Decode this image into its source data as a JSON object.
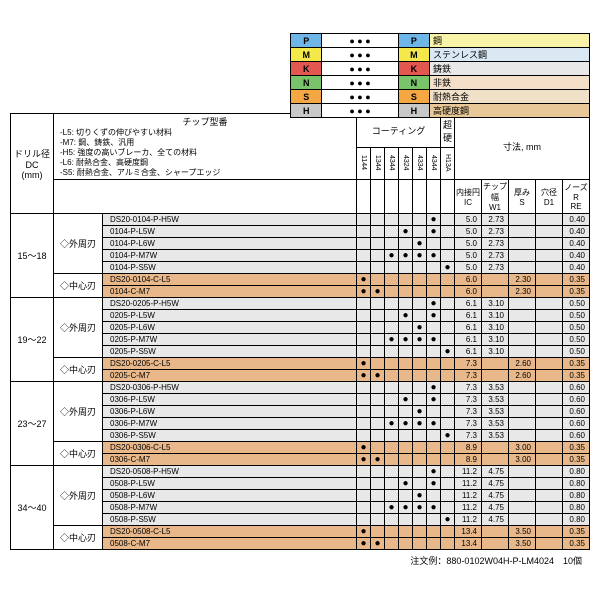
{
  "legend": {
    "rows": [
      {
        "c": "P",
        "bg": "#6fb6e8",
        "mbg": "#f8f3a8",
        "m": "鋼"
      },
      {
        "c": "M",
        "bg": "#f5e84a",
        "mbg": "#d9e8f3",
        "m": "ステンレス鋼"
      },
      {
        "c": "K",
        "bg": "#e25750",
        "mbg": "#e8e8e8",
        "m": "鋳鉄"
      },
      {
        "c": "N",
        "bg": "#79c36a",
        "mbg": "#f4dfc8",
        "m": "非鉄"
      },
      {
        "c": "S",
        "bg": "#f4a742",
        "mbg": "#f0e0c8",
        "m": "耐熱合金"
      },
      {
        "c": "H",
        "bg": "#c8c8c8",
        "mbg": "#e8c898",
        "m": "高硬度鋼"
      }
    ]
  },
  "headers": {
    "dc": "ドリル径\nDC\n(mm)",
    "chiptitle": "チップ型番",
    "notes": [
      "-L5: 切りくずの伸びやすい材料",
      "-M7: 鋼、鋳鉄、汎用",
      "-H5: 強度の高いブレーカ、全ての材料",
      "-L6: 耐熱合金、高硬度鋼",
      "-S5: 耐熱合金、アルミ合金、シャープエッジ"
    ],
    "coat": "コーティング",
    "carb": "超硬",
    "sunpo": "寸法, mm",
    "codes": [
      "1144",
      "1344",
      "4344",
      "4324",
      "4334",
      "4344",
      "H13A"
    ],
    "dims": [
      {
        "t": "内接円",
        "s": "IC"
      },
      {
        "t": "チップ幅",
        "s": "W1"
      },
      {
        "t": "厚み",
        "s": "S"
      },
      {
        "t": "穴径",
        "s": "D1"
      },
      {
        "t": "ノーズR",
        "s": "RE"
      }
    ],
    "peri": "◇外周刃",
    "cent": "◇中心刃"
  },
  "groups": [
    {
      "dc": "15〜18",
      "peri": [
        {
          "pn": "DS20-0104-P-H5W",
          "d": [
            0,
            0,
            0,
            0,
            0,
            1,
            0
          ],
          "v": [
            "5.0",
            "2.73",
            "",
            "",
            "0.40"
          ]
        },
        {
          "pn": "0104-P-L5W",
          "d": [
            0,
            0,
            0,
            1,
            0,
            1,
            0
          ],
          "v": [
            "5.0",
            "2.73",
            "",
            "",
            "0.40"
          ]
        },
        {
          "pn": "0104-P-L6W",
          "d": [
            0,
            0,
            0,
            0,
            1,
            0,
            0
          ],
          "v": [
            "5.0",
            "2.73",
            "",
            "",
            "0.40"
          ]
        },
        {
          "pn": "0104-P-M7W",
          "d": [
            0,
            0,
            1,
            1,
            1,
            1,
            0
          ],
          "v": [
            "5.0",
            "2.73",
            "",
            "",
            "0.40"
          ]
        },
        {
          "pn": "0104-P-S5W",
          "d": [
            0,
            0,
            0,
            0,
            0,
            0,
            1
          ],
          "v": [
            "5.0",
            "2.73",
            "",
            "",
            "0.40"
          ]
        }
      ],
      "cent": [
        {
          "pn": "DS20-0104-C-L5",
          "d": [
            1,
            0,
            0,
            0,
            0,
            0,
            0
          ],
          "v": [
            "6.0",
            "",
            "2.30",
            "",
            "0.35"
          ]
        },
        {
          "pn": "0104-C-M7",
          "d": [
            1,
            1,
            0,
            0,
            0,
            0,
            0
          ],
          "v": [
            "6.0",
            "",
            "2.30",
            "",
            "0.35"
          ]
        }
      ]
    },
    {
      "dc": "19〜22",
      "peri": [
        {
          "pn": "DS20-0205-P-H5W",
          "d": [
            0,
            0,
            0,
            0,
            0,
            1,
            0
          ],
          "v": [
            "6.1",
            "3.10",
            "",
            "",
            "0.50"
          ]
        },
        {
          "pn": "0205-P-L5W",
          "d": [
            0,
            0,
            0,
            1,
            0,
            1,
            0
          ],
          "v": [
            "6.1",
            "3.10",
            "",
            "",
            "0.50"
          ]
        },
        {
          "pn": "0205-P-L6W",
          "d": [
            0,
            0,
            0,
            0,
            1,
            0,
            0
          ],
          "v": [
            "6.1",
            "3.10",
            "",
            "",
            "0.50"
          ]
        },
        {
          "pn": "0205-P-M7W",
          "d": [
            0,
            0,
            1,
            1,
            1,
            1,
            0
          ],
          "v": [
            "6.1",
            "3.10",
            "",
            "",
            "0.50"
          ]
        },
        {
          "pn": "0205-P-S5W",
          "d": [
            0,
            0,
            0,
            0,
            0,
            0,
            1
          ],
          "v": [
            "6.1",
            "3.10",
            "",
            "",
            "0.50"
          ]
        }
      ],
      "cent": [
        {
          "pn": "DS20-0205-C-L5",
          "d": [
            1,
            0,
            0,
            0,
            0,
            0,
            0
          ],
          "v": [
            "7.3",
            "",
            "2.60",
            "",
            "0.35"
          ]
        },
        {
          "pn": "0205-C-M7",
          "d": [
            1,
            1,
            0,
            0,
            0,
            0,
            0
          ],
          "v": [
            "7.3",
            "",
            "2.60",
            "",
            "0.35"
          ]
        }
      ]
    },
    {
      "dc": "23〜27",
      "peri": [
        {
          "pn": "DS20-0306-P-H5W",
          "d": [
            0,
            0,
            0,
            0,
            0,
            1,
            0
          ],
          "v": [
            "7.3",
            "3.53",
            "",
            "",
            "0.60"
          ]
        },
        {
          "pn": "0306-P-L5W",
          "d": [
            0,
            0,
            0,
            1,
            0,
            1,
            0
          ],
          "v": [
            "7.3",
            "3.53",
            "",
            "",
            "0.60"
          ]
        },
        {
          "pn": "0306-P-L6W",
          "d": [
            0,
            0,
            0,
            0,
            1,
            0,
            0
          ],
          "v": [
            "7.3",
            "3.53",
            "",
            "",
            "0.60"
          ]
        },
        {
          "pn": "0306-P-M7W",
          "d": [
            0,
            0,
            1,
            1,
            1,
            1,
            0
          ],
          "v": [
            "7.3",
            "3.53",
            "",
            "",
            "0.60"
          ]
        },
        {
          "pn": "0306-P-S5W",
          "d": [
            0,
            0,
            0,
            0,
            0,
            0,
            1
          ],
          "v": [
            "7.3",
            "3.53",
            "",
            "",
            "0.60"
          ]
        }
      ],
      "cent": [
        {
          "pn": "DS20-0306-C-L5",
          "d": [
            1,
            0,
            0,
            0,
            0,
            0,
            0
          ],
          "v": [
            "8.9",
            "",
            "3.00",
            "",
            "0.35"
          ]
        },
        {
          "pn": "0306-C-M7",
          "d": [
            1,
            1,
            0,
            0,
            0,
            0,
            0
          ],
          "v": [
            "8.9",
            "",
            "3.00",
            "",
            "0.35"
          ]
        }
      ]
    },
    {
      "dc": "34〜40",
      "peri": [
        {
          "pn": "DS20-0508-P-H5W",
          "d": [
            0,
            0,
            0,
            0,
            0,
            1,
            0
          ],
          "v": [
            "11.2",
            "4.75",
            "",
            "",
            "0.80"
          ]
        },
        {
          "pn": "0508-P-L5W",
          "d": [
            0,
            0,
            0,
            1,
            0,
            1,
            0
          ],
          "v": [
            "11.2",
            "4.75",
            "",
            "",
            "0.80"
          ]
        },
        {
          "pn": "0508-P-L6W",
          "d": [
            0,
            0,
            0,
            0,
            1,
            0,
            0
          ],
          "v": [
            "11.2",
            "4.75",
            "",
            "",
            "0.80"
          ]
        },
        {
          "pn": "0508-P-M7W",
          "d": [
            0,
            0,
            1,
            1,
            1,
            1,
            0
          ],
          "v": [
            "11.2",
            "4.75",
            "",
            "",
            "0.80"
          ]
        },
        {
          "pn": "0508-P-S5W",
          "d": [
            0,
            0,
            0,
            0,
            0,
            0,
            1
          ],
          "v": [
            "11.2",
            "4.75",
            "",
            "",
            "0.80"
          ]
        }
      ],
      "cent": [
        {
          "pn": "DS20-0508-C-L5",
          "d": [
            1,
            0,
            0,
            0,
            0,
            0,
            0
          ],
          "v": [
            "13.4",
            "",
            "3.50",
            "",
            "0.35"
          ]
        },
        {
          "pn": "0508-C-M7",
          "d": [
            1,
            1,
            0,
            0,
            0,
            0,
            0
          ],
          "v": [
            "13.4",
            "",
            "3.50",
            "",
            "0.35"
          ]
        }
      ]
    }
  ],
  "footer": "注文例：880-0102W04H-P-LM4024　10個"
}
